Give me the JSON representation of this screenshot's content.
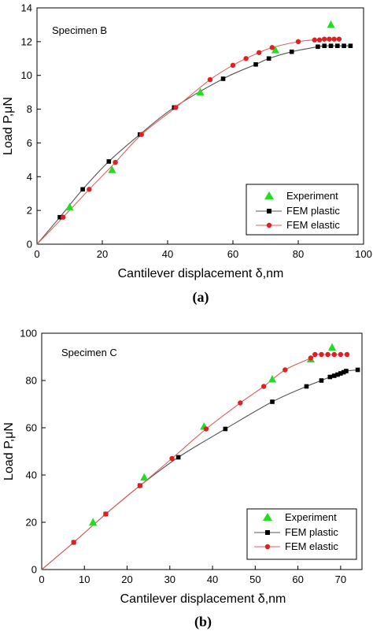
{
  "colors": {
    "experiment": "#22dd22",
    "fem_plastic": "#000000",
    "fem_elastic": "#e02020",
    "plastic_line": "#555555",
    "elastic_line": "#e06060"
  },
  "chart_data": [
    {
      "type": "scatter",
      "panel_label": "(a)",
      "annotation": "Specimen B",
      "xlabel": "Cantilever displacement δ,nm",
      "ylabel": "Load P,μN",
      "xlim": [
        0,
        100
      ],
      "ylim": [
        0,
        14
      ],
      "xticks": [
        0,
        20,
        40,
        60,
        80,
        100
      ],
      "yticks": [
        0,
        2,
        4,
        6,
        8,
        10,
        12,
        14
      ],
      "legend_position": "bottom-right",
      "series": [
        {
          "name": "Experiment",
          "marker": "triangle",
          "points": [
            [
              10,
              2.2
            ],
            [
              23,
              4.4
            ],
            [
              50,
              9.0
            ],
            [
              73,
              11.5
            ],
            [
              90,
              13.0
            ]
          ]
        },
        {
          "name": "FEM plastic",
          "marker": "square",
          "points": [
            [
              7,
              1.6
            ],
            [
              14,
              3.25
            ],
            [
              22,
              4.9
            ],
            [
              31.5,
              6.5
            ],
            [
              42,
              8.1
            ],
            [
              57,
              9.8
            ],
            [
              67,
              10.65
            ],
            [
              71,
              11.0
            ],
            [
              78,
              11.4
            ],
            [
              86,
              11.7
            ],
            [
              88,
              11.75
            ],
            [
              90,
              11.75
            ],
            [
              92,
              11.75
            ],
            [
              94,
              11.75
            ],
            [
              96,
              11.75
            ]
          ]
        },
        {
          "name": "FEM elastic",
          "marker": "circle",
          "points": [
            [
              8,
              1.6
            ],
            [
              16,
              3.25
            ],
            [
              24,
              4.85
            ],
            [
              32,
              6.5
            ],
            [
              42.5,
              8.1
            ],
            [
              53,
              9.75
            ],
            [
              60,
              10.6
            ],
            [
              64,
              11.0
            ],
            [
              68,
              11.35
            ],
            [
              72,
              11.65
            ],
            [
              80,
              12.0
            ],
            [
              85,
              12.1
            ],
            [
              86.5,
              12.1
            ],
            [
              88,
              12.15
            ],
            [
              89.5,
              12.15
            ],
            [
              91,
              12.15
            ],
            [
              92.5,
              12.15
            ]
          ]
        }
      ]
    },
    {
      "type": "scatter",
      "panel_label": "(b)",
      "annotation": "Specimen C",
      "xlabel": "Cantilever displacement δ,nm",
      "ylabel": "Load P,μN",
      "xlim": [
        0,
        75
      ],
      "ylim": [
        0,
        100
      ],
      "xticks": [
        0,
        10,
        20,
        30,
        40,
        50,
        60,
        70
      ],
      "yticks": [
        0,
        20,
        40,
        60,
        80,
        100
      ],
      "legend_position": "bottom-right",
      "series": [
        {
          "name": "Experiment",
          "marker": "triangle",
          "points": [
            [
              12,
              20
            ],
            [
              24,
              39
            ],
            [
              38,
              60.5
            ],
            [
              54,
              80.5
            ],
            [
              63,
              89
            ],
            [
              68,
              94
            ]
          ]
        },
        {
          "name": "FEM plastic",
          "marker": "square",
          "points": [
            [
              7.5,
              11.5
            ],
            [
              15,
              23.5
            ],
            [
              23,
              35.5
            ],
            [
              32,
              47.5
            ],
            [
              43,
              59.5
            ],
            [
              54,
              71
            ],
            [
              62,
              77.5
            ],
            [
              65.5,
              80
            ],
            [
              67.5,
              81.5
            ],
            [
              68.5,
              82
            ],
            [
              69.3,
              82.5
            ],
            [
              70,
              83
            ],
            [
              70.7,
              83.5
            ],
            [
              71.3,
              84
            ],
            [
              74,
              84.5
            ]
          ]
        },
        {
          "name": "FEM elastic",
          "marker": "circle",
          "points": [
            [
              7.5,
              11.5
            ],
            [
              15,
              23.5
            ],
            [
              23,
              35.5
            ],
            [
              30.5,
              47
            ],
            [
              38.5,
              59.5
            ],
            [
              46.5,
              70.5
            ],
            [
              52,
              77.5
            ],
            [
              57,
              84.5
            ],
            [
              63,
              89.5
            ],
            [
              64,
              91
            ],
            [
              65.5,
              91
            ],
            [
              67,
              91
            ],
            [
              68.5,
              91
            ],
            [
              70,
              91
            ],
            [
              71.5,
              91
            ]
          ]
        }
      ]
    }
  ]
}
